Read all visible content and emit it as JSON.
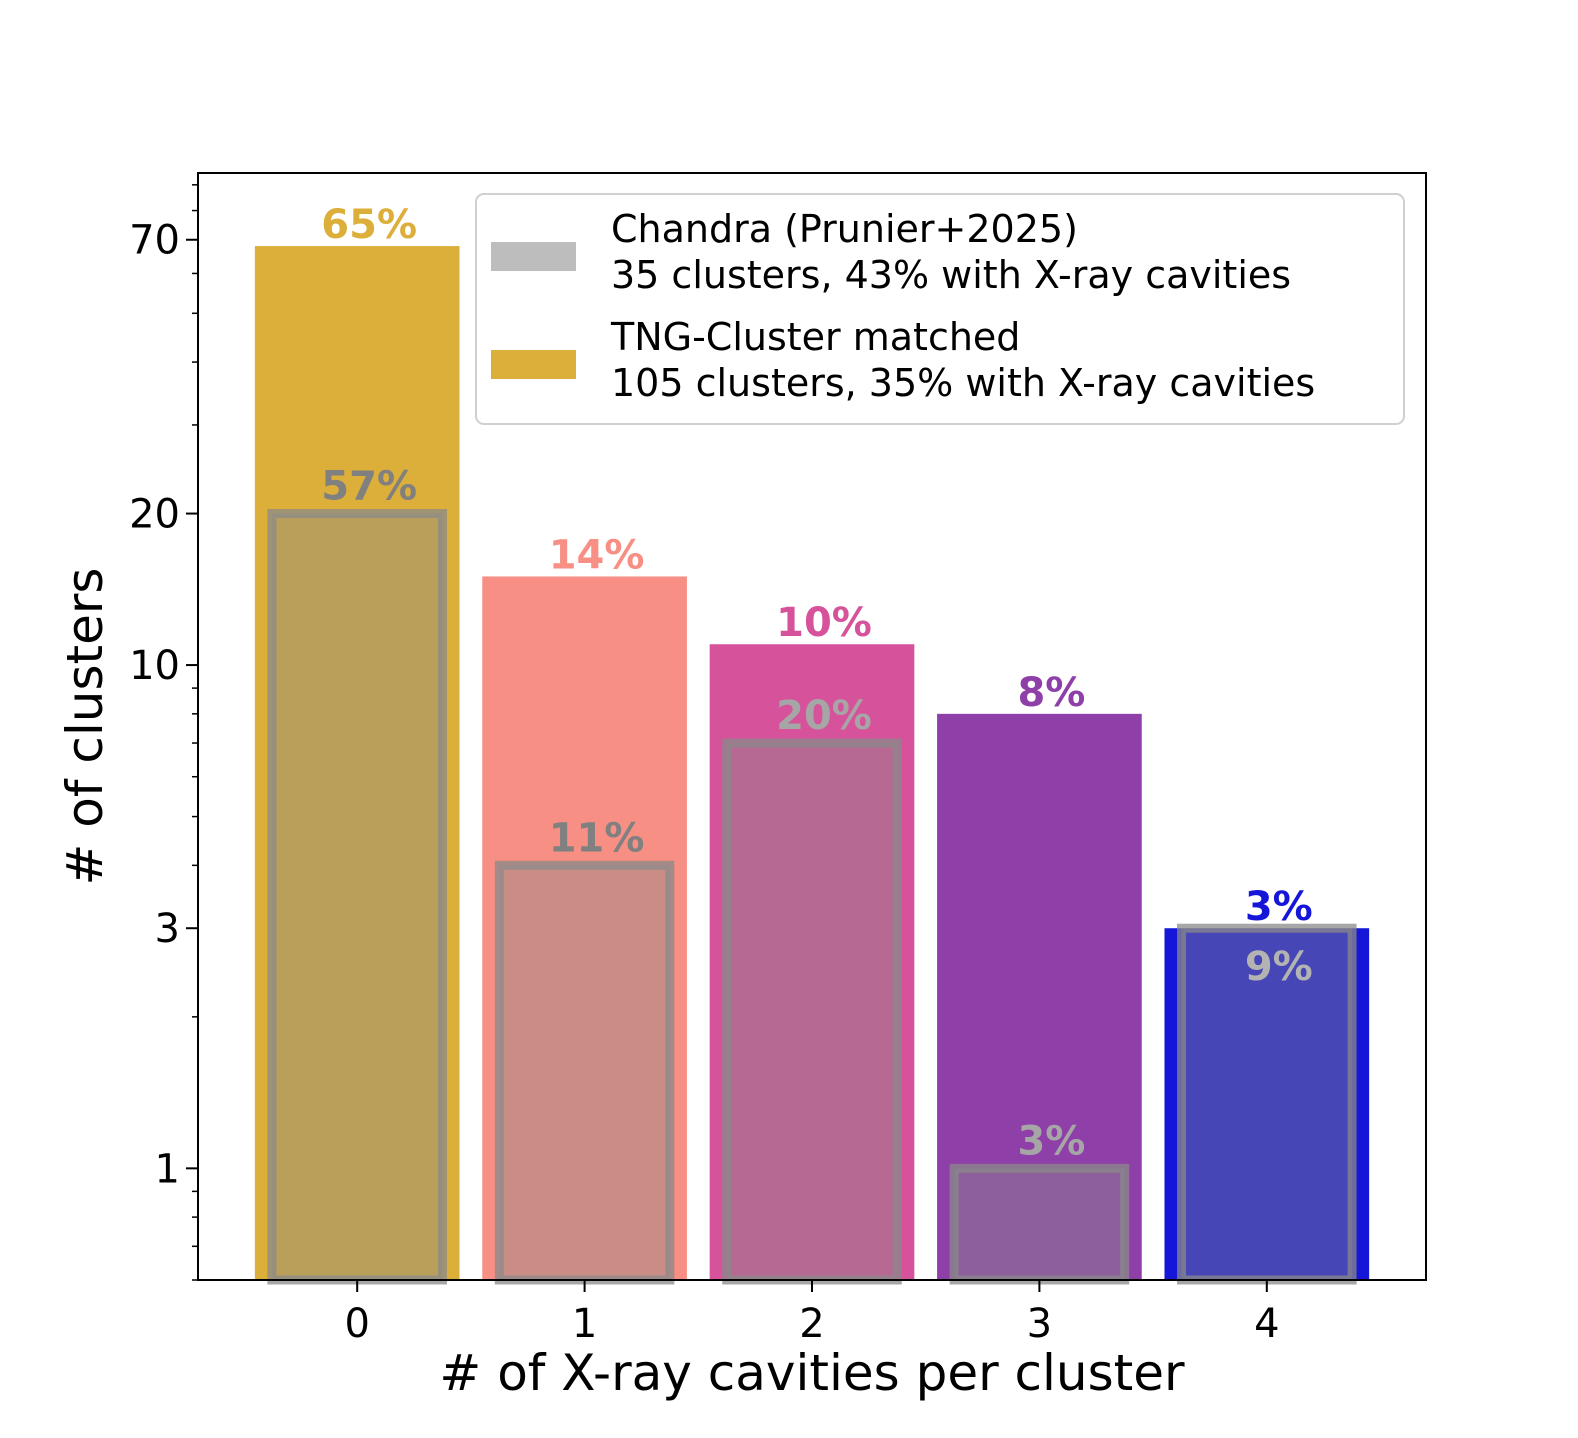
{
  "chart_data": {
    "type": "bar",
    "xlabel": "# of X-ray cavities per cluster",
    "ylabel": "# of clusters",
    "yscale": "log",
    "ylim": [
      0.6,
      95
    ],
    "yticks": [
      1,
      3,
      10,
      20,
      70
    ],
    "ytick_labels": [
      "1",
      "3",
      "10",
      "20",
      "70"
    ],
    "categories": [
      "0",
      "1",
      "2",
      "3",
      "4"
    ],
    "grid": false,
    "legend_position": "top-right",
    "series": [
      {
        "name": "TNG-Cluster matched",
        "legend_subtitle": "105 clusters, 35% with X-ray cavities",
        "legend_color": "#dcae3a",
        "values": [
          68,
          15,
          11,
          8,
          3
        ],
        "labels": [
          "65%",
          "14%",
          "10%",
          "8%",
          "3%"
        ],
        "colors": [
          "#dcae3a",
          "#f88f84",
          "#d6529a",
          "#8f40a8",
          "#1616d8"
        ]
      },
      {
        "name": "Chandra (Prunier+2025)",
        "legend_subtitle": "35 clusters, 43% with X-ray cavities",
        "legend_color": "#bdbdbd",
        "values": [
          20,
          4,
          7,
          1,
          3
        ],
        "labels": [
          "57%",
          "11%",
          "20%",
          "3%",
          "9%"
        ],
        "color": "#8a8a8a",
        "label_colors": [
          "#808080",
          "#808080",
          "#a6a6a6",
          "#a6a6a6",
          "#b3b3b3"
        ]
      }
    ]
  }
}
